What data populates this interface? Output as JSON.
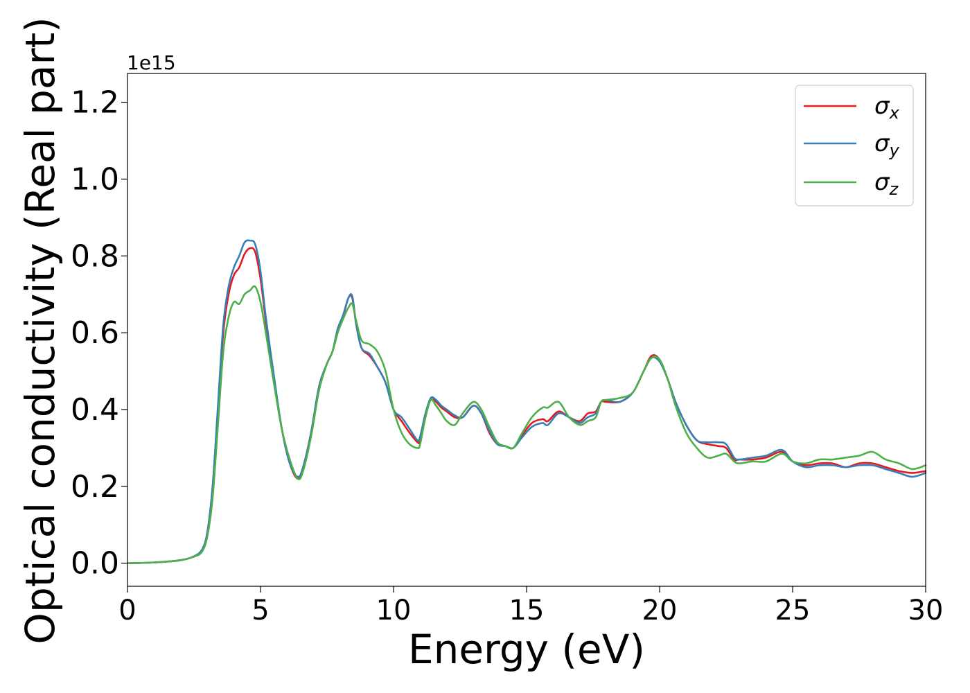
{
  "chart_data": {
    "type": "line",
    "xlabel": "Energy (eV)",
    "ylabel": "Optical conductivity (Real part)",
    "offset_label": "1e15",
    "y_scale_factor": 1000000000000000.0,
    "xlim": [
      0,
      30
    ],
    "ylim": [
      -0.06,
      1.275
    ],
    "xticks": [
      0,
      5,
      10,
      15,
      20,
      25,
      30
    ],
    "xtick_labels": [
      "0",
      "5",
      "10",
      "15",
      "20",
      "25",
      "30"
    ],
    "yticks": [
      0.0,
      0.2,
      0.4,
      0.6,
      0.8,
      1.0,
      1.2
    ],
    "ytick_labels": [
      "0.0",
      "0.2",
      "0.4",
      "0.6",
      "0.8",
      "1.0",
      "1.2"
    ],
    "grid": false,
    "legend_position": "top-right",
    "series": [
      {
        "name": "σx",
        "name_base": "σ",
        "name_sub": "x",
        "color": "#e41a1c",
        "x": [
          0,
          1,
          2,
          2.5,
          2.8,
          3.0,
          3.2,
          3.4,
          3.6,
          3.8,
          4.0,
          4.2,
          4.4,
          4.6,
          4.8,
          5.0,
          5.2,
          5.5,
          5.8,
          6.1,
          6.4,
          6.6,
          6.9,
          7.2,
          7.5,
          7.7,
          7.9,
          8.1,
          8.3,
          8.45,
          8.6,
          8.8,
          9.1,
          9.4,
          9.7,
          10.0,
          10.3,
          10.6,
          10.9,
          11.0,
          11.2,
          11.4,
          11.6,
          11.8,
          12.0,
          12.3,
          12.6,
          13.0,
          13.3,
          13.6,
          13.9,
          14.2,
          14.5,
          14.8,
          15.2,
          15.6,
          15.8,
          16.2,
          16.6,
          17.0,
          17.3,
          17.6,
          17.8,
          18.0,
          18.5,
          19.0,
          19.4,
          19.7,
          20.0,
          20.3,
          20.6,
          21.0,
          21.4,
          21.8,
          22.2,
          22.5,
          22.8,
          23.0,
          23.5,
          24.0,
          24.6,
          25.0,
          25.5,
          26.0,
          26.5,
          27.0,
          27.5,
          28.0,
          28.5,
          29.0,
          29.5,
          30.0
        ],
        "y": [
          0,
          0.002,
          0.008,
          0.018,
          0.035,
          0.08,
          0.2,
          0.4,
          0.6,
          0.7,
          0.75,
          0.77,
          0.805,
          0.82,
          0.81,
          0.74,
          0.63,
          0.48,
          0.35,
          0.26,
          0.22,
          0.25,
          0.34,
          0.46,
          0.52,
          0.55,
          0.6,
          0.64,
          0.69,
          0.69,
          0.62,
          0.56,
          0.54,
          0.51,
          0.47,
          0.4,
          0.37,
          0.34,
          0.315,
          0.32,
          0.38,
          0.43,
          0.42,
          0.405,
          0.395,
          0.38,
          0.38,
          0.41,
          0.39,
          0.34,
          0.31,
          0.305,
          0.3,
          0.33,
          0.365,
          0.375,
          0.37,
          0.395,
          0.38,
          0.37,
          0.39,
          0.395,
          0.42,
          0.42,
          0.42,
          0.445,
          0.5,
          0.54,
          0.53,
          0.48,
          0.42,
          0.36,
          0.32,
          0.31,
          0.305,
          0.3,
          0.27,
          0.27,
          0.27,
          0.275,
          0.29,
          0.265,
          0.255,
          0.26,
          0.26,
          0.25,
          0.26,
          0.26,
          0.25,
          0.24,
          0.235,
          0.24
        ]
      },
      {
        "name": "σy",
        "name_base": "σ",
        "name_sub": "y",
        "color": "#377eb8",
        "x": [
          0,
          1,
          2,
          2.5,
          2.8,
          3.0,
          3.2,
          3.4,
          3.6,
          3.8,
          4.0,
          4.2,
          4.4,
          4.6,
          4.8,
          5.0,
          5.2,
          5.5,
          5.8,
          6.1,
          6.4,
          6.6,
          6.9,
          7.2,
          7.5,
          7.7,
          7.9,
          8.1,
          8.3,
          8.45,
          8.6,
          8.8,
          9.1,
          9.4,
          9.7,
          10.0,
          10.3,
          10.6,
          10.9,
          11.0,
          11.2,
          11.4,
          11.6,
          11.8,
          12.0,
          12.3,
          12.6,
          13.0,
          13.3,
          13.6,
          13.9,
          14.2,
          14.5,
          14.8,
          15.2,
          15.6,
          15.8,
          16.2,
          16.6,
          17.0,
          17.3,
          17.6,
          17.8,
          18.0,
          18.5,
          19.0,
          19.4,
          19.7,
          20.0,
          20.3,
          20.6,
          21.0,
          21.4,
          21.8,
          22.2,
          22.5,
          22.8,
          23.0,
          23.5,
          24.0,
          24.6,
          25.0,
          25.5,
          26.0,
          26.5,
          27.0,
          27.5,
          28.0,
          28.5,
          29.0,
          29.5,
          30.0
        ],
        "y": [
          0,
          0.002,
          0.008,
          0.018,
          0.035,
          0.08,
          0.2,
          0.41,
          0.62,
          0.72,
          0.77,
          0.8,
          0.835,
          0.84,
          0.83,
          0.76,
          0.64,
          0.49,
          0.35,
          0.26,
          0.225,
          0.25,
          0.34,
          0.46,
          0.52,
          0.55,
          0.61,
          0.645,
          0.69,
          0.695,
          0.62,
          0.56,
          0.545,
          0.51,
          0.47,
          0.4,
          0.38,
          0.35,
          0.32,
          0.33,
          0.39,
          0.43,
          0.425,
          0.41,
          0.4,
          0.385,
          0.38,
          0.41,
          0.39,
          0.345,
          0.31,
          0.305,
          0.3,
          0.325,
          0.355,
          0.365,
          0.36,
          0.39,
          0.38,
          0.365,
          0.38,
          0.39,
          0.42,
          0.425,
          0.42,
          0.445,
          0.5,
          0.535,
          0.525,
          0.48,
          0.42,
          0.36,
          0.32,
          0.315,
          0.315,
          0.31,
          0.275,
          0.27,
          0.275,
          0.28,
          0.295,
          0.265,
          0.25,
          0.255,
          0.255,
          0.25,
          0.255,
          0.255,
          0.245,
          0.235,
          0.225,
          0.235
        ]
      },
      {
        "name": "σz",
        "name_base": "σ",
        "name_sub": "z",
        "color": "#4daf4a",
        "x": [
          0,
          1,
          2,
          2.5,
          2.8,
          3.0,
          3.2,
          3.4,
          3.6,
          3.8,
          4.0,
          4.2,
          4.4,
          4.6,
          4.8,
          5.0,
          5.2,
          5.5,
          5.8,
          6.1,
          6.4,
          6.6,
          6.9,
          7.2,
          7.5,
          7.7,
          7.9,
          8.1,
          8.3,
          8.45,
          8.6,
          8.8,
          9.1,
          9.4,
          9.7,
          10.0,
          10.3,
          10.6,
          10.9,
          11.0,
          11.2,
          11.4,
          11.6,
          11.8,
          12.0,
          12.3,
          12.6,
          13.0,
          13.3,
          13.6,
          13.9,
          14.2,
          14.5,
          14.8,
          15.2,
          15.6,
          15.8,
          16.2,
          16.6,
          17.0,
          17.3,
          17.6,
          17.8,
          18.0,
          18.5,
          19.0,
          19.4,
          19.7,
          20.0,
          20.3,
          20.6,
          21.0,
          21.4,
          21.8,
          22.2,
          22.5,
          22.8,
          23.0,
          23.5,
          24.0,
          24.6,
          25.0,
          25.5,
          26.0,
          26.5,
          27.0,
          27.5,
          28.0,
          28.5,
          29.0,
          29.5,
          30.0
        ],
        "y": [
          0,
          0.002,
          0.008,
          0.017,
          0.03,
          0.07,
          0.17,
          0.36,
          0.55,
          0.64,
          0.68,
          0.675,
          0.7,
          0.71,
          0.72,
          0.68,
          0.6,
          0.47,
          0.35,
          0.27,
          0.22,
          0.24,
          0.33,
          0.45,
          0.52,
          0.55,
          0.6,
          0.635,
          0.665,
          0.675,
          0.63,
          0.58,
          0.57,
          0.55,
          0.5,
          0.4,
          0.34,
          0.31,
          0.3,
          0.31,
          0.38,
          0.425,
          0.41,
          0.39,
          0.37,
          0.36,
          0.39,
          0.42,
          0.4,
          0.355,
          0.315,
          0.305,
          0.3,
          0.335,
          0.38,
          0.405,
          0.405,
          0.42,
          0.38,
          0.36,
          0.37,
          0.38,
          0.42,
          0.425,
          0.43,
          0.445,
          0.5,
          0.535,
          0.53,
          0.48,
          0.41,
          0.34,
          0.3,
          0.275,
          0.28,
          0.285,
          0.265,
          0.26,
          0.265,
          0.265,
          0.285,
          0.265,
          0.26,
          0.27,
          0.27,
          0.275,
          0.28,
          0.29,
          0.27,
          0.26,
          0.245,
          0.255
        ]
      }
    ]
  }
}
